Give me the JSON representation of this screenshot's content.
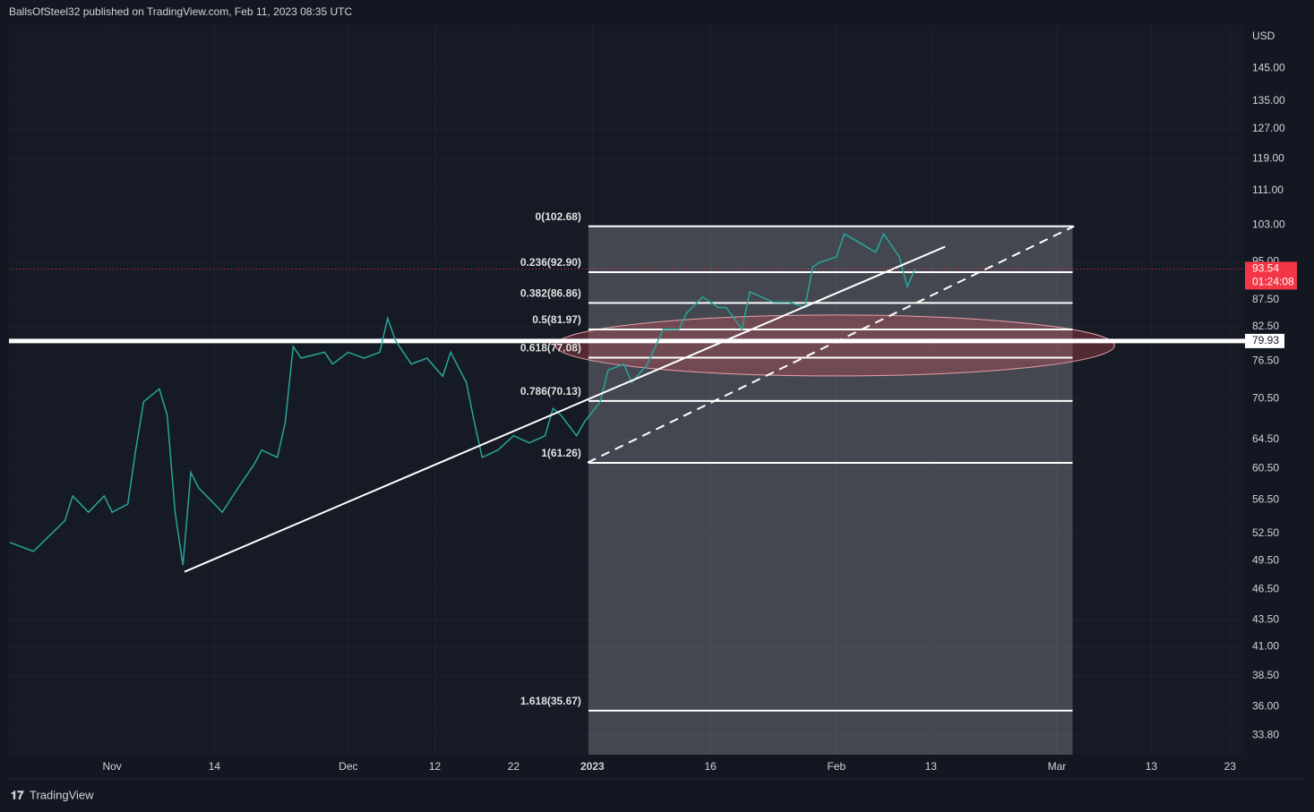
{
  "header": "BallsOfSteel32 published on TradingView.com, Feb 11, 2023 08:35 UTC",
  "footer": "TradingView",
  "chart_data": {
    "type": "line",
    "currency": "USD",
    "log_scale": true,
    "grid": true,
    "color": "#26a69a",
    "ylim": [
      32.4,
      159.3
    ],
    "yticks": [
      {
        "value": 145,
        "label": "145.00"
      },
      {
        "value": 135,
        "label": "135.00"
      },
      {
        "value": 127,
        "label": "127.00"
      },
      {
        "value": 119,
        "label": "119.00"
      },
      {
        "value": 111,
        "label": "111.00"
      },
      {
        "value": 103,
        "label": "103.00"
      },
      {
        "value": 95,
        "label": "95.00"
      },
      {
        "value": 87.5,
        "label": "87.50"
      },
      {
        "value": 82.5,
        "label": "82.50"
      },
      {
        "value": 76.5,
        "label": "76.50"
      },
      {
        "value": 70.5,
        "label": "70.50"
      },
      {
        "value": 64.5,
        "label": "64.50"
      },
      {
        "value": 60.5,
        "label": "60.50"
      },
      {
        "value": 56.5,
        "label": "56.50"
      },
      {
        "value": 52.5,
        "label": "52.50"
      },
      {
        "value": 49.5,
        "label": "49.50"
      },
      {
        "value": 46.5,
        "label": "46.50"
      },
      {
        "value": 43.5,
        "label": "43.50"
      },
      {
        "value": 41,
        "label": "41.00"
      },
      {
        "value": 38.5,
        "label": "38.50"
      },
      {
        "value": 36,
        "label": "36.00"
      },
      {
        "value": 33.8,
        "label": "33.80"
      }
    ],
    "xlim": [
      -74.1,
      82.9
    ],
    "xticks": [
      {
        "value": -61,
        "label": "Nov"
      },
      {
        "value": -48,
        "label": "14"
      },
      {
        "value": -31,
        "label": "Dec"
      },
      {
        "value": -20,
        "label": "12"
      },
      {
        "value": -10,
        "label": "22"
      },
      {
        "value": 0,
        "label": "2023"
      },
      {
        "value": 15,
        "label": "16"
      },
      {
        "value": 31,
        "label": "Feb"
      },
      {
        "value": 43,
        "label": "13"
      },
      {
        "value": 59,
        "label": "Mar"
      },
      {
        "value": 71,
        "label": "13"
      },
      {
        "value": 81,
        "label": "23"
      }
    ],
    "x": [
      -74,
      -71,
      -67,
      -66,
      -64,
      -62,
      -61,
      -59,
      -58,
      -57,
      -56,
      -55,
      -54,
      -53,
      -52,
      -51,
      -50,
      -48,
      -47,
      -45,
      -43,
      -42,
      -40,
      -39,
      -38,
      -37,
      -34,
      -33,
      -31,
      -29,
      -27,
      -26,
      -25,
      -23,
      -21,
      -19,
      -18,
      -16,
      -15,
      -14,
      -12,
      -10,
      -8,
      -6,
      -5,
      -4,
      -2,
      -1,
      1,
      2,
      4,
      5,
      7,
      9,
      11,
      12,
      14,
      16,
      17,
      19,
      20,
      23,
      25,
      27,
      28,
      29,
      31,
      32,
      34,
      36,
      37,
      39,
      40,
      41
    ],
    "values": [
      51.5,
      50.5,
      54,
      57,
      55,
      57,
      55,
      56,
      63,
      70,
      71,
      72,
      68,
      55,
      49,
      60,
      58,
      56,
      55,
      58,
      61,
      63,
      62,
      67,
      79,
      77,
      78,
      76,
      78,
      77,
      78,
      84,
      80,
      76,
      77,
      74,
      78,
      73,
      67,
      62,
      63,
      65,
      64,
      65,
      69,
      68,
      65,
      67,
      70,
      75,
      76,
      73,
      76,
      82,
      82,
      85,
      88,
      86,
      86,
      82,
      89,
      87,
      87,
      86,
      94,
      95,
      96,
      101,
      99,
      97,
      101,
      96,
      90,
      93.54
    ],
    "last_price": {
      "value": 93.54,
      "label": "93.54",
      "countdown": "01:24:08"
    },
    "support_level": {
      "value": 79.93,
      "label": "79.93"
    },
    "fib": {
      "x": [
        -0.5,
        61
      ],
      "levels": [
        {
          "label": "0(102.68)",
          "value": 102.68
        },
        {
          "label": "0.236(92.90)",
          "value": 92.9
        },
        {
          "label": "0.382(86.86)",
          "value": 86.86
        },
        {
          "label": "0.5(81.97)",
          "value": 81.97
        },
        {
          "label": "0.618(77.08)",
          "value": 77.08
        },
        {
          "label": "0.786(70.13)",
          "value": 70.13
        },
        {
          "label": "1(61.26)",
          "value": 61.26
        },
        {
          "label": "1.618(35.67)",
          "value": 35.67
        }
      ]
    },
    "trendlines": [
      {
        "x": [
          -51.8,
          44.8
        ],
        "values": [
          48.3,
          98.2
        ],
        "dashed": false
      },
      {
        "x": [
          -0.6,
          61.2
        ],
        "values": [
          61.3,
          102.7
        ],
        "dashed": true
      }
    ]
  }
}
